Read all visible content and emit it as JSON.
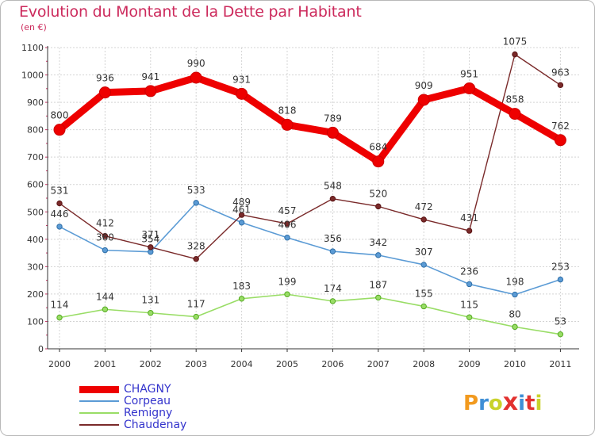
{
  "title": "Evolution du Montant de la Dette par Habitant",
  "unit_label": "(en €)",
  "logo": {
    "text": "Proxiti",
    "colors": [
      "#f29a1f",
      "#3f8fd6",
      "#c9d22a",
      "#e2312f",
      "#3f8fd6",
      "#e2312f",
      "#c9d22a"
    ]
  },
  "chart_data": {
    "type": "line",
    "x": [
      "2000",
      "2001",
      "2002",
      "2003",
      "2004",
      "2005",
      "2006",
      "2007",
      "2008",
      "2009",
      "2010",
      "2011"
    ],
    "ylim": [
      0,
      1100
    ],
    "yticks": [
      "0",
      "100",
      "200",
      "300",
      "400",
      "500",
      "600",
      "700",
      "800",
      "900",
      "1000",
      "1100"
    ],
    "grid": true,
    "legend_position": "bottom-left",
    "series": [
      {
        "name": "CHAGNY",
        "color": "#ee0000",
        "values": [
          800,
          936,
          941,
          990,
          931,
          818,
          789,
          684,
          909,
          951,
          858,
          762
        ],
        "labels": [
          "800",
          "936",
          "941",
          "990",
          "931",
          "818",
          "789",
          "684",
          "909",
          "951",
          "858",
          "762"
        ]
      },
      {
        "name": "Corpeau",
        "color": "#5b9bd5",
        "values": [
          446,
          360,
          354,
          533,
          461,
          406,
          356,
          342,
          307,
          236,
          198,
          253
        ],
        "labels": [
          "446",
          "360",
          "354",
          "533",
          "461",
          "406",
          "356",
          "342",
          "307",
          "236",
          "198",
          "253"
        ]
      },
      {
        "name": "Remigny",
        "color": "#99dd66",
        "values": [
          114,
          144,
          131,
          117,
          183,
          199,
          174,
          187,
          155,
          115,
          80,
          53
        ],
        "labels": [
          "114",
          "144",
          "131",
          "117",
          "183",
          "199",
          "174",
          "187",
          "155",
          "115",
          "80",
          "53"
        ]
      },
      {
        "name": "Chaudenay",
        "color": "#7a2a2a",
        "values": [
          531,
          412,
          371,
          328,
          489,
          457,
          548,
          520,
          472,
          431,
          1075,
          963
        ],
        "labels": [
          "531",
          "412",
          "371",
          "328",
          "489",
          "457",
          "548",
          "520",
          "472",
          "431",
          "1075",
          "963"
        ]
      }
    ]
  }
}
